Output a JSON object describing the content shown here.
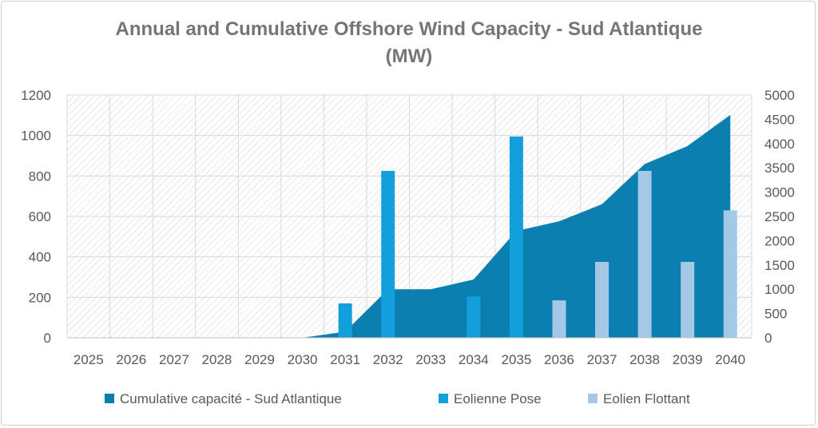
{
  "chart_data": {
    "type": "bar",
    "title_line1": "Annual and Cumulative Offshore Wind Capacity - Sud Atlantique",
    "title_line2": "(MW)",
    "categories": [
      "2025",
      "2026",
      "2027",
      "2028",
      "2029",
      "2030",
      "2031",
      "2032",
      "2033",
      "2034",
      "2035",
      "2036",
      "2037",
      "2038",
      "2039",
      "2040"
    ],
    "y_left": {
      "min": 0,
      "max": 1200,
      "ticks": [
        "0",
        "200",
        "400",
        "600",
        "800",
        "1000",
        "1200"
      ]
    },
    "y_right": {
      "min": 0,
      "max": 5000,
      "ticks": [
        "0",
        "500",
        "1000",
        "1500",
        "2000",
        "2500",
        "3000",
        "3500",
        "4000",
        "4500",
        "5000"
      ]
    },
    "series": [
      {
        "name": "Cumulative capacité -  Sud Atlantique",
        "kind": "area",
        "axis": "right",
        "color": "#0a7fb0",
        "values": [
          0,
          0,
          0,
          0,
          0,
          0,
          125,
          1000,
          1000,
          1200,
          2200,
          2400,
          2750,
          3580,
          3950,
          4590
        ]
      },
      {
        "name": "Eolienne Pose",
        "kind": "bar",
        "axis": "left",
        "color": "#139fdb",
        "values": [
          0,
          0,
          0,
          0,
          0,
          0,
          170,
          825,
          0,
          205,
          995,
          0,
          0,
          0,
          0,
          0
        ]
      },
      {
        "name": "Eolien Flottant",
        "kind": "bar",
        "axis": "left",
        "color": "#a5c8e6",
        "values": [
          0,
          0,
          0,
          0,
          0,
          0,
          0,
          0,
          0,
          0,
          0,
          185,
          375,
          825,
          375,
          630
        ]
      }
    ],
    "grid": true,
    "legend_position": "bottom"
  }
}
